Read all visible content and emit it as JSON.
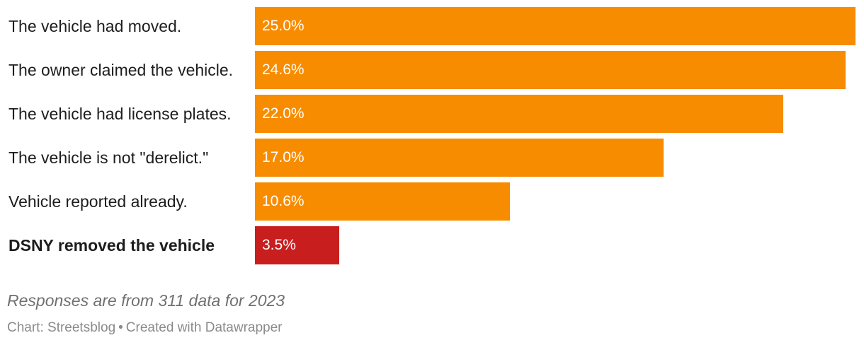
{
  "chart_data": {
    "type": "bar",
    "orientation": "horizontal",
    "categories": [
      "The vehicle had moved.",
      "The owner claimed the vehicle.",
      "The vehicle had license plates.",
      "The vehicle is not \"derelict.\"",
      "Vehicle reported already.",
      "DSNY removed the vehicle"
    ],
    "values": [
      25.0,
      24.6,
      22.0,
      17.0,
      10.6,
      3.5
    ],
    "value_labels": [
      "25.0%",
      "24.6%",
      "22.0%",
      "17.0%",
      "10.6%",
      "3.5%"
    ],
    "bold_categories": [
      "DSNY removed the vehicle"
    ],
    "xlim": [
      0,
      25
    ],
    "grid": false,
    "colors": {
      "default": "#f78c00",
      "highlight": "#c81e1e"
    },
    "highlight_index": 5,
    "note": "Responses are from 311 data for 2023"
  },
  "footer": {
    "source": "Chart: Streetsblog",
    "separator": "•",
    "credit": "Created with Datawrapper"
  }
}
